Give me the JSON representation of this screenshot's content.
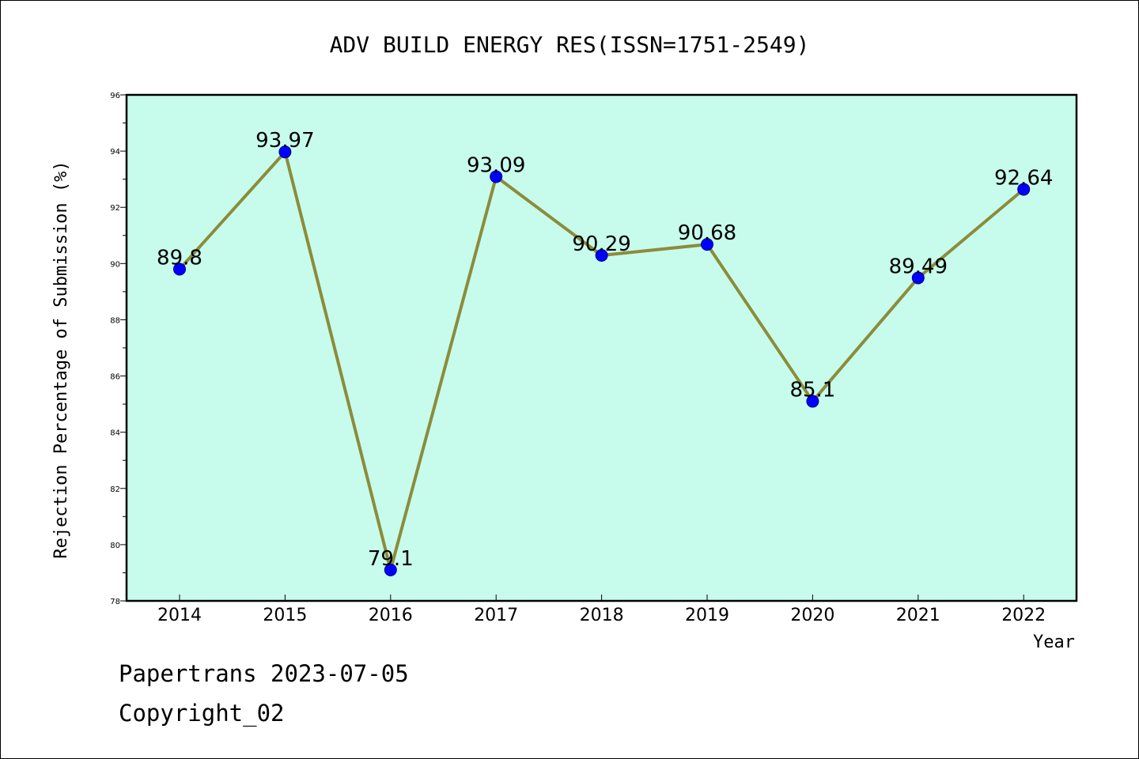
{
  "chart_data": {
    "type": "line",
    "title": "ADV BUILD ENERGY RES(ISSN=1751-2549)",
    "xlabel": "Year",
    "ylabel": "Rejection Percentage of Submission (%)",
    "categories": [
      "2014",
      "2015",
      "2016",
      "2017",
      "2018",
      "2019",
      "2020",
      "2021",
      "2022"
    ],
    "values": [
      89.8,
      93.97,
      79.1,
      93.09,
      90.29,
      90.68,
      85.1,
      89.49,
      92.64
    ],
    "value_labels": [
      "89.8",
      "93.97",
      "79.1",
      "93.09",
      "90.29",
      "90.68",
      "85.1",
      "89.49",
      "92.64"
    ],
    "ylim": [
      78,
      96
    ],
    "yticks": [
      "78",
      "80",
      "82",
      "84",
      "86",
      "88",
      "90",
      "92",
      "94",
      "96"
    ],
    "grid": false,
    "colors": {
      "plot_background": "#c7fcec",
      "line": "#8c8c3a",
      "marker": "#0000ff"
    }
  },
  "footer": {
    "line1": "Papertrans 2023-07-05",
    "line2": "Copyright_02"
  }
}
